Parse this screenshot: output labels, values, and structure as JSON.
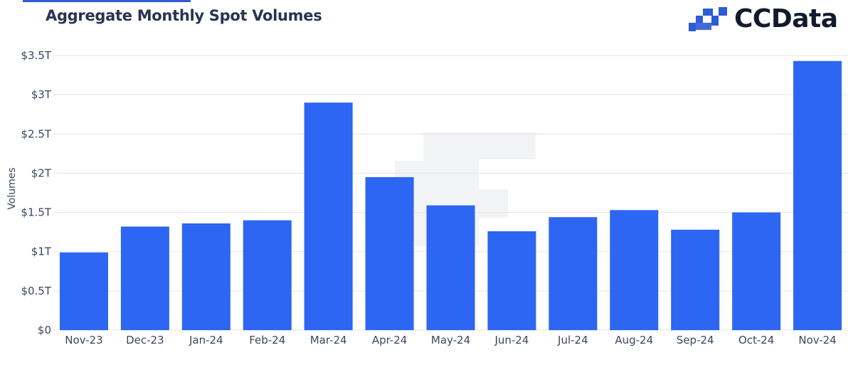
{
  "header": {
    "title": "Aggregate Monthly Spot Volumes",
    "brand_name": "CCData",
    "brand_logo_icon": "ccdata-logo-icon"
  },
  "colors": {
    "bar": "#2c66f2",
    "grid": "#e1e4ea",
    "axis_text": "#3b4660",
    "title": "#2a3350",
    "brand": "#141a2e",
    "brand_accent": "#2e5bd6"
  },
  "chart_data": {
    "type": "bar",
    "title": "Aggregate Monthly Spot Volumes",
    "xlabel": "",
    "ylabel": "Volumes",
    "categories": [
      "Nov-23",
      "Dec-23",
      "Jan-24",
      "Feb-24",
      "Mar-24",
      "Apr-24",
      "May-24",
      "Jun-24",
      "Jul-24",
      "Aug-24",
      "Sep-24",
      "Oct-24",
      "Nov-24"
    ],
    "values": [
      0.99,
      1.32,
      1.36,
      1.4,
      2.9,
      1.95,
      1.59,
      1.26,
      1.44,
      1.53,
      1.28,
      1.5,
      3.43
    ],
    "unit": "USD trillions",
    "ylim": [
      0,
      3.5
    ],
    "yticks": [
      0,
      0.5,
      1,
      1.5,
      2,
      2.5,
      3,
      3.5
    ],
    "ytick_labels": [
      "$0",
      "$0.5T",
      "$1T",
      "$1.5T",
      "$2T",
      "$2.5T",
      "$3T",
      "$3.5T"
    ],
    "grid": true,
    "legend": "none"
  }
}
